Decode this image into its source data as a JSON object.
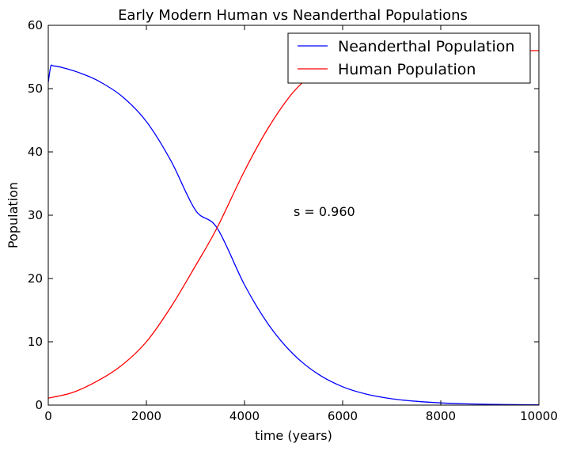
{
  "chart_data": {
    "type": "line",
    "title": "Early Modern Human vs Neanderthal Populations",
    "xlabel": "time (years)",
    "ylabel": "Population",
    "xlim": [
      0,
      10000
    ],
    "ylim": [
      0,
      60
    ],
    "xticks": [
      0,
      2000,
      4000,
      6000,
      8000,
      10000
    ],
    "yticks": [
      0,
      10,
      20,
      30,
      40,
      50,
      60
    ],
    "grid": false,
    "legend_position": "upper right",
    "annotation": {
      "text": "s = 0.960",
      "x": 5000,
      "y": 30
    },
    "series": [
      {
        "name": "Neanderthal Population",
        "color": "#0000ff",
        "x": [
          0,
          50,
          100,
          300,
          600,
          1000,
          1500,
          2000,
          2500,
          3000,
          3440,
          4000,
          4500,
          5000,
          5500,
          6000,
          6500,
          7000,
          7500,
          8000,
          8500,
          9000,
          9500,
          10000
        ],
        "y": [
          51.0,
          53.5,
          53.6,
          53.3,
          52.6,
          51.3,
          48.8,
          44.8,
          38.6,
          30.8,
          28.0,
          19.0,
          12.6,
          8.0,
          4.9,
          2.9,
          1.7,
          1.0,
          0.6,
          0.35,
          0.2,
          0.12,
          0.07,
          0.04
        ]
      },
      {
        "name": "Human Population",
        "color": "#ff0000",
        "x": [
          0,
          500,
          1000,
          1500,
          2000,
          2500,
          3000,
          3440,
          4000,
          4500,
          5000,
          5500,
          6000,
          6500,
          7000,
          7500,
          8000,
          8500,
          9000,
          9500,
          10000
        ],
        "y": [
          1.1,
          2.0,
          3.8,
          6.3,
          10.0,
          15.5,
          22.0,
          28.0,
          37.0,
          44.0,
          49.5,
          53.0,
          55.3,
          56.2,
          56.3,
          56.1,
          56.0,
          56.0,
          56.0,
          56.0,
          56.0
        ]
      }
    ]
  }
}
